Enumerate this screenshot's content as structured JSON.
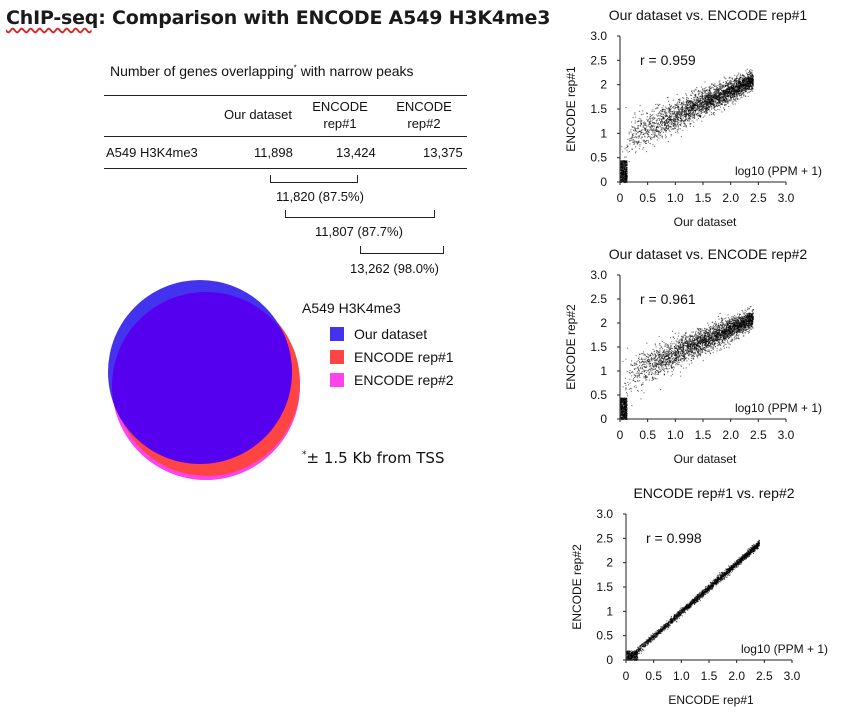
{
  "page": {
    "title_underlined": "ChIP-seq",
    "title_rest": ": Comparison with ENCODE A549 H3K4me3"
  },
  "table": {
    "caption": "Number of genes overlapping",
    "caption_mark": "*",
    "caption_tail": "with narrow peaks",
    "col_headers": [
      "Our dataset",
      "ENCODE rep#1",
      "ENCODE rep#2"
    ],
    "row_label": "A549 H3K4me3",
    "values": [
      "11,898",
      "13,424",
      "13,375"
    ]
  },
  "overlaps": [
    {
      "label": "11,820 (87.5%)"
    },
    {
      "label": "11,807 (87.7%)"
    },
    {
      "label": "13,262 (98.0%)"
    }
  ],
  "venn": {
    "title": "A549 H3K4me3",
    "sets": [
      {
        "name": "Our dataset",
        "color": "#4433ee"
      },
      {
        "name": "ENCODE rep#1",
        "color": "#ff4444"
      },
      {
        "name": "ENCODE rep#2",
        "color": "#ff44ee"
      }
    ],
    "overlap_color": "#5500ee"
  },
  "footnote": {
    "mark": "*",
    "text": "± 1.5 Kb from TSS"
  },
  "chart_data": [
    {
      "type": "scatter",
      "title": "Our dataset vs. ENCODE rep#1",
      "xlabel": "Our dataset",
      "ylabel": "ENCODE rep#1",
      "annotation": "r = 0.959",
      "unit_label": "log10 (PPM + 1)",
      "xlim": [
        0,
        3.0
      ],
      "ylim": [
        0,
        3.0
      ],
      "xticks": [
        "0",
        "0.5",
        "1.0",
        "1.5",
        "2.0",
        "2.5",
        "3.0"
      ],
      "yticks": [
        "0",
        "0.5",
        "1",
        "1.5",
        "2",
        "2.5",
        "3.0"
      ],
      "r": 0.959,
      "sample_points": [
        [
          0.2,
          0.9
        ],
        [
          0.5,
          1.05
        ],
        [
          1.0,
          1.25
        ],
        [
          1.5,
          1.55
        ],
        [
          2.0,
          1.85
        ],
        [
          2.3,
          2.05
        ]
      ]
    },
    {
      "type": "scatter",
      "title": "Our dataset vs. ENCODE rep#2",
      "xlabel": "Our dataset",
      "ylabel": "ENCODE rep#2",
      "annotation": "r = 0.961",
      "unit_label": "log10 (PPM + 1)",
      "xlim": [
        0,
        3.0
      ],
      "ylim": [
        0,
        3.0
      ],
      "xticks": [
        "0",
        "0.5",
        "1.0",
        "1.5",
        "2.0",
        "2.5",
        "3.0"
      ],
      "yticks": [
        "0",
        "0.5",
        "1",
        "1.5",
        "2",
        "2.5",
        "3.0"
      ],
      "r": 0.961,
      "sample_points": [
        [
          0.2,
          0.9
        ],
        [
          0.5,
          1.05
        ],
        [
          1.0,
          1.25
        ],
        [
          1.5,
          1.55
        ],
        [
          2.0,
          1.85
        ],
        [
          2.3,
          2.05
        ]
      ]
    },
    {
      "type": "scatter",
      "title": "ENCODE rep#1 vs. rep#2",
      "xlabel": "ENCODE rep#1",
      "ylabel": "ENCODE rep#2",
      "annotation": "r = 0.998",
      "unit_label": "log10 (PPM + 1)",
      "xlim": [
        0,
        3.0
      ],
      "ylim": [
        0,
        3.0
      ],
      "xticks": [
        "0",
        "0.5",
        "1.0",
        "1.5",
        "2.0",
        "2.5",
        "3.0"
      ],
      "yticks": [
        "0",
        "0.5",
        "1",
        "1.5",
        "2",
        "2.5",
        "3.0"
      ],
      "r": 0.998,
      "sample_points": [
        [
          0.1,
          0.1
        ],
        [
          0.5,
          0.5
        ],
        [
          1.0,
          1.0
        ],
        [
          1.5,
          1.5
        ],
        [
          2.0,
          2.0
        ],
        [
          2.4,
          2.4
        ]
      ]
    }
  ]
}
